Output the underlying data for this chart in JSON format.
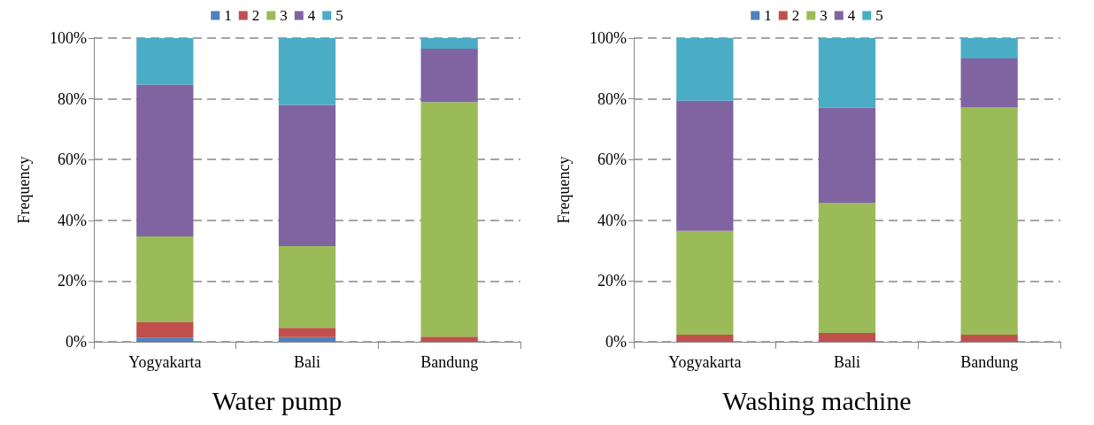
{
  "chart_data": [
    {
      "type": "bar",
      "title": "Water pump",
      "ylabel": "Frequency",
      "categories": [
        "Yogyakarta",
        "Bali",
        "Bandung"
      ],
      "stacked": true,
      "series": [
        {
          "name": "1",
          "color": "#4f81bd",
          "values": [
            1.4,
            1.5,
            0
          ]
        },
        {
          "name": "2",
          "color": "#c0504d",
          "values": [
            5.0,
            3.1,
            1.7
          ]
        },
        {
          "name": "3",
          "color": "#9bbb59",
          "values": [
            28.3,
            26.9,
            77.2
          ]
        },
        {
          "name": "4",
          "color": "#8064a2",
          "values": [
            50.0,
            46.5,
            17.6
          ]
        },
        {
          "name": "5",
          "color": "#4bacc6",
          "values": [
            15.3,
            22.0,
            3.5
          ]
        }
      ],
      "ylim": [
        0,
        100
      ],
      "yticks": [
        {
          "value": 0,
          "label": "0%"
        },
        {
          "value": 20,
          "label": "20%"
        },
        {
          "value": 40,
          "label": "40%"
        },
        {
          "value": 60,
          "label": "60%"
        },
        {
          "value": 80,
          "label": "80%"
        },
        {
          "value": 100,
          "label": "100%"
        }
      ],
      "grid": "y",
      "legend": "top"
    },
    {
      "type": "bar",
      "title": "Washing machine",
      "ylabel": "Frequency",
      "categories": [
        "Yogyakarta",
        "Bali",
        "Bandung"
      ],
      "stacked": true,
      "series": [
        {
          "name": "1",
          "color": "#4f81bd",
          "values": [
            0,
            0,
            0
          ]
        },
        {
          "name": "2",
          "color": "#c0504d",
          "values": [
            2.3,
            2.9,
            2.3
          ]
        },
        {
          "name": "3",
          "color": "#9bbb59",
          "values": [
            34.2,
            42.9,
            74.8
          ]
        },
        {
          "name": "4",
          "color": "#8064a2",
          "values": [
            42.9,
            31.3,
            16.2
          ]
        },
        {
          "name": "5",
          "color": "#4bacc6",
          "values": [
            20.6,
            22.9,
            6.7
          ]
        }
      ],
      "ylim": [
        0,
        100
      ],
      "yticks": [
        {
          "value": 0,
          "label": "0%"
        },
        {
          "value": 20,
          "label": "20%"
        },
        {
          "value": 40,
          "label": "40%"
        },
        {
          "value": 60,
          "label": "60%"
        },
        {
          "value": 80,
          "label": "80%"
        },
        {
          "value": 100,
          "label": "100%"
        }
      ],
      "grid": "y",
      "legend": "top"
    }
  ]
}
